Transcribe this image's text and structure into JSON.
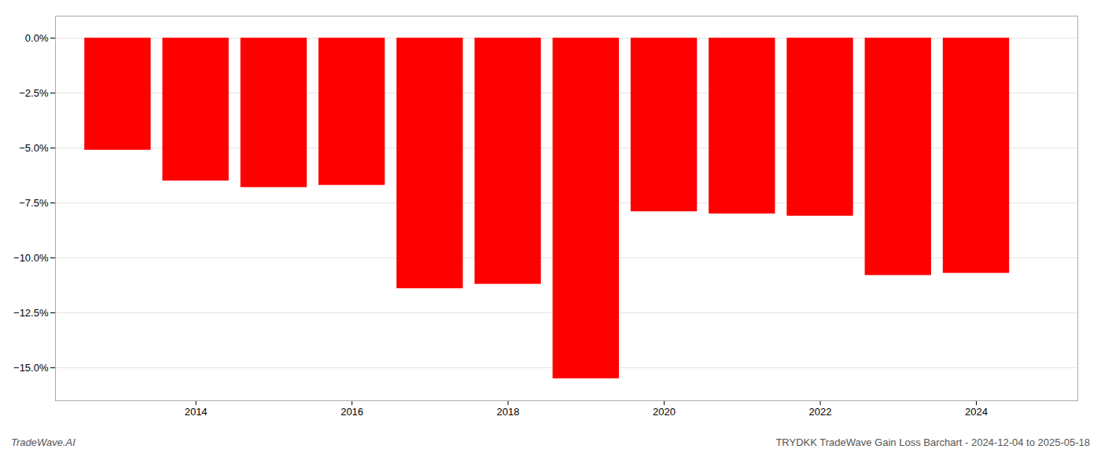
{
  "chart_data": {
    "type": "bar",
    "title": "TRYDKK TradeWave Gain Loss Barchart - 2024-12-04 to 2025-05-18",
    "annotations": [
      "TradeWave.AI"
    ],
    "x": [
      2013,
      2014,
      2015,
      2016,
      2017,
      2018,
      2019,
      2020,
      2021,
      2022,
      2023,
      2024
    ],
    "values": [
      -5.1,
      -6.5,
      -6.8,
      -6.7,
      -11.4,
      -11.2,
      -15.5,
      -7.9,
      -8.0,
      -8.1,
      -10.8,
      -10.7
    ],
    "color": "#ff0000",
    "ylim": [
      -16.5,
      1.0
    ],
    "yticks": [
      {
        "value": 0.0,
        "label": "0.0%"
      },
      {
        "value": -2.5,
        "label": "−2.5%"
      },
      {
        "value": -5.0,
        "label": "−5.0%"
      },
      {
        "value": -7.5,
        "label": "−7.5%"
      },
      {
        "value": -10.0,
        "label": "−10.0%"
      },
      {
        "value": -12.5,
        "label": "−12.5%"
      },
      {
        "value": -15.0,
        "label": "−15.0%"
      }
    ],
    "xlim": [
      2012.2,
      2025.3
    ],
    "xticks": [
      2014,
      2016,
      2018,
      2020,
      2022,
      2024
    ],
    "grid": true
  }
}
